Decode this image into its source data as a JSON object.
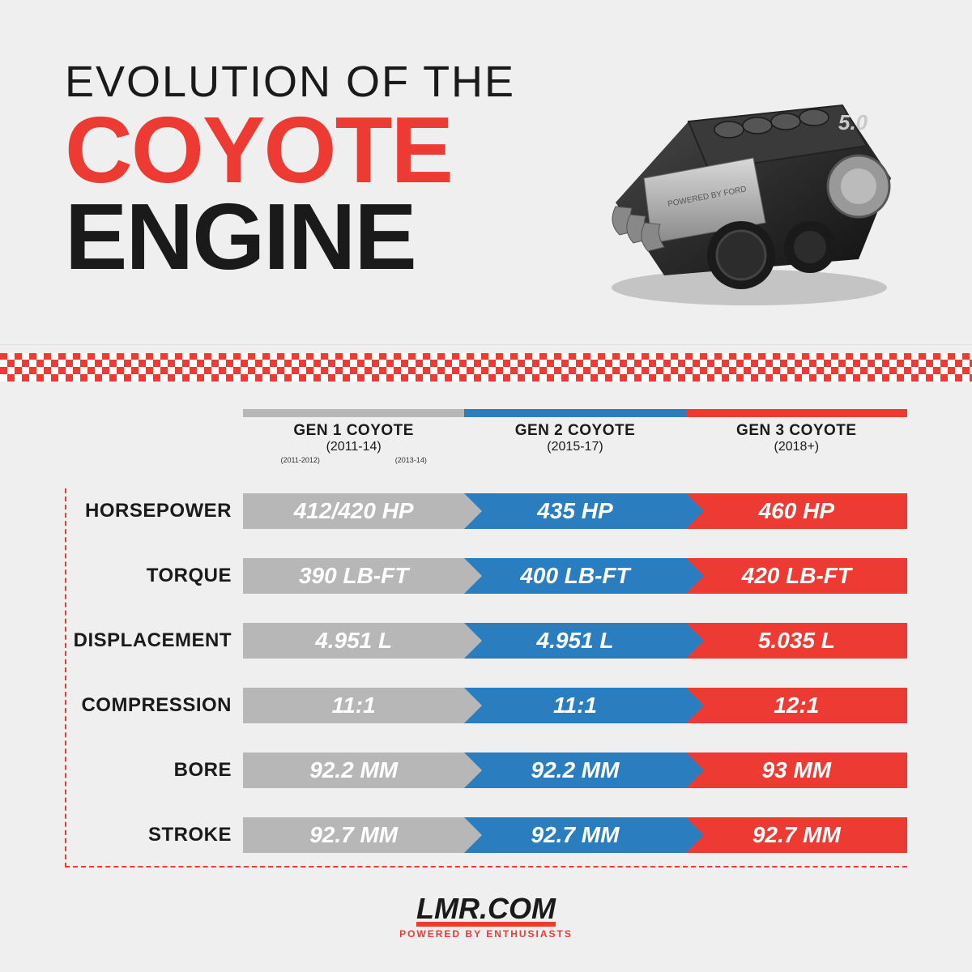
{
  "colors": {
    "red": "#ed3a32",
    "gray": "#b7b7b7",
    "blue": "#2a7ebf",
    "text": "#1a1a1a",
    "bg": "#efefef"
  },
  "title": {
    "line1": "EVOLUTION OF THE",
    "line2": "COYOTE",
    "line3": "ENGINE"
  },
  "columns": [
    {
      "name": "GEN 1 COYOTE",
      "years": "(2011-14)",
      "color": "#b7b7b7",
      "subyears": [
        "(2011-2012)",
        "(2013-14)"
      ]
    },
    {
      "name": "GEN 2 COYOTE",
      "years": "(2015-17)",
      "color": "#2a7ebf"
    },
    {
      "name": "GEN 3 COYOTE",
      "years": "(2018+)",
      "color": "#ed3a32"
    }
  ],
  "rows": [
    {
      "label": "HORSEPOWER",
      "values": [
        "412/420 HP",
        "435 HP",
        "460 HP"
      ]
    },
    {
      "label": "TORQUE",
      "values": [
        "390 LB-FT",
        "400 LB-FT",
        "420 LB-FT"
      ]
    },
    {
      "label": "DISPLACEMENT",
      "values": [
        "4.951 L",
        "4.951 L",
        "5.035 L"
      ]
    },
    {
      "label": "COMPRESSION",
      "values": [
        "11:1",
        "11:1",
        "12:1"
      ]
    },
    {
      "label": "BORE",
      "values": [
        "92.2 MM",
        "92.2 MM",
        "93 MM"
      ]
    },
    {
      "label": "STROKE",
      "values": [
        "92.7 MM",
        "92.7 MM",
        "92.7 MM"
      ]
    }
  ],
  "footer": {
    "logo": "LMR.COM",
    "tagline": "POWERED BY ENTHUSIASTS"
  },
  "typography": {
    "title_line1_size": 54,
    "title_big_size": 116,
    "row_label_size": 24,
    "value_size": 28,
    "col_name_size": 19
  }
}
